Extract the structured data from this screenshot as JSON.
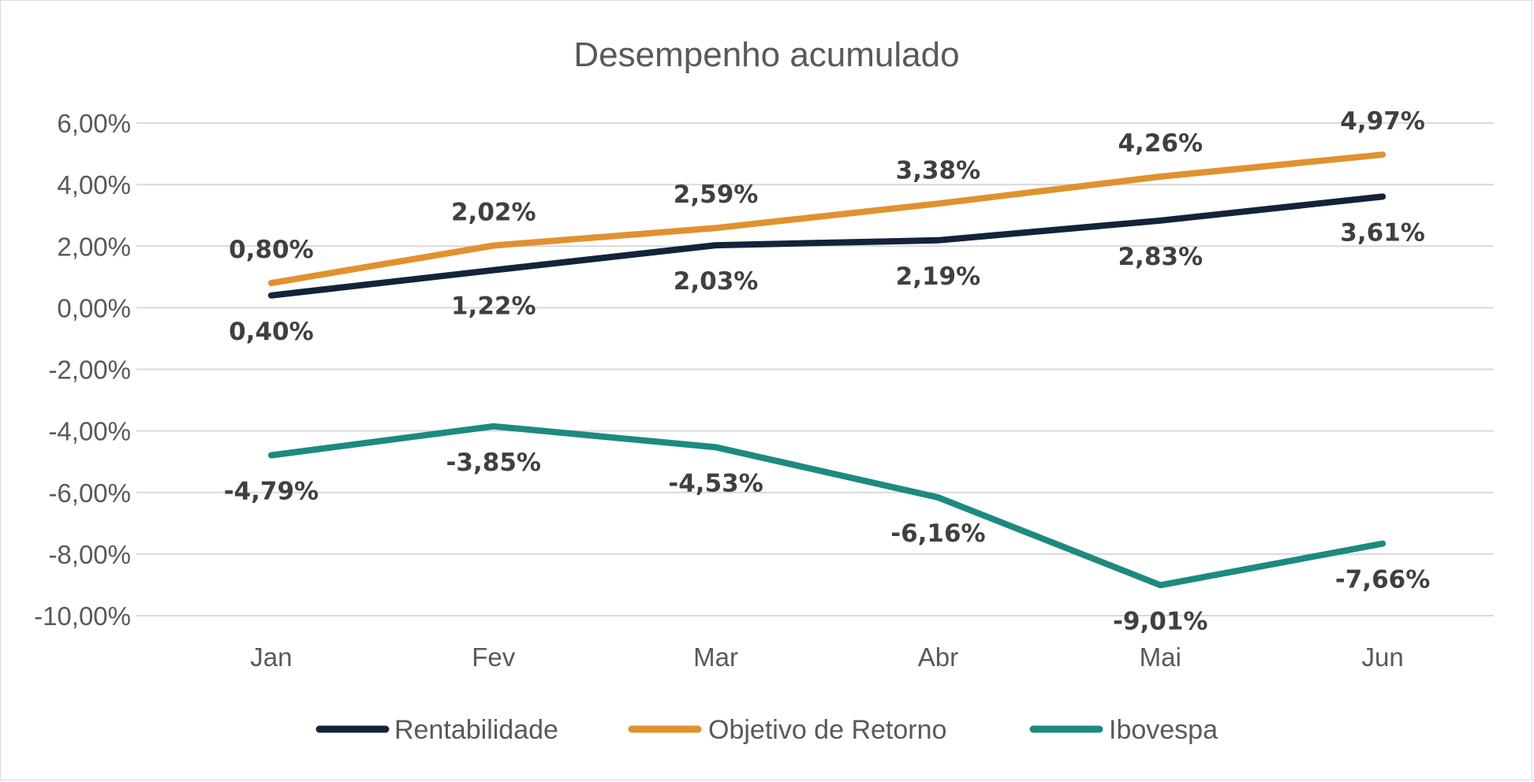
{
  "chart_data": {
    "type": "line",
    "title": "Desempenho acumulado",
    "categories": [
      "Jan",
      "Fev",
      "Mar",
      "Abr",
      "Mai",
      "Jun"
    ],
    "yticks": [
      "6,00%",
      "4,00%",
      "2,00%",
      "0,00%",
      "-2,00%",
      "-4,00%",
      "-6,00%",
      "-8,00%",
      "-10,00%"
    ],
    "ylim": [
      -10,
      6
    ],
    "grid": true,
    "legend_position": "bottom",
    "series": [
      {
        "name": "Rentabilidade",
        "color": "#13233a",
        "values": [
          0.4,
          1.22,
          2.03,
          2.19,
          2.83,
          3.61
        ],
        "labels": [
          "0,40%",
          "1,22%",
          "2,03%",
          "2,19%",
          "2,83%",
          "3,61%"
        ],
        "label_side": "below"
      },
      {
        "name": "Objetivo de Retorno",
        "color": "#e0922f",
        "values": [
          0.8,
          2.02,
          2.59,
          3.38,
          4.26,
          4.97
        ],
        "labels": [
          "0,80%",
          "2,02%",
          "2,59%",
          "3,38%",
          "4,26%",
          "4,97%"
        ],
        "label_side": "above"
      },
      {
        "name": "Ibovespa",
        "color": "#1d8a80",
        "values": [
          -4.79,
          -3.85,
          -4.53,
          -6.16,
          -9.01,
          -7.66
        ],
        "labels": [
          "-4,79%",
          "-3,85%",
          "-4,53%",
          "-6,16%",
          "-9,01%",
          "-7,66%"
        ],
        "label_side": "below"
      }
    ]
  }
}
